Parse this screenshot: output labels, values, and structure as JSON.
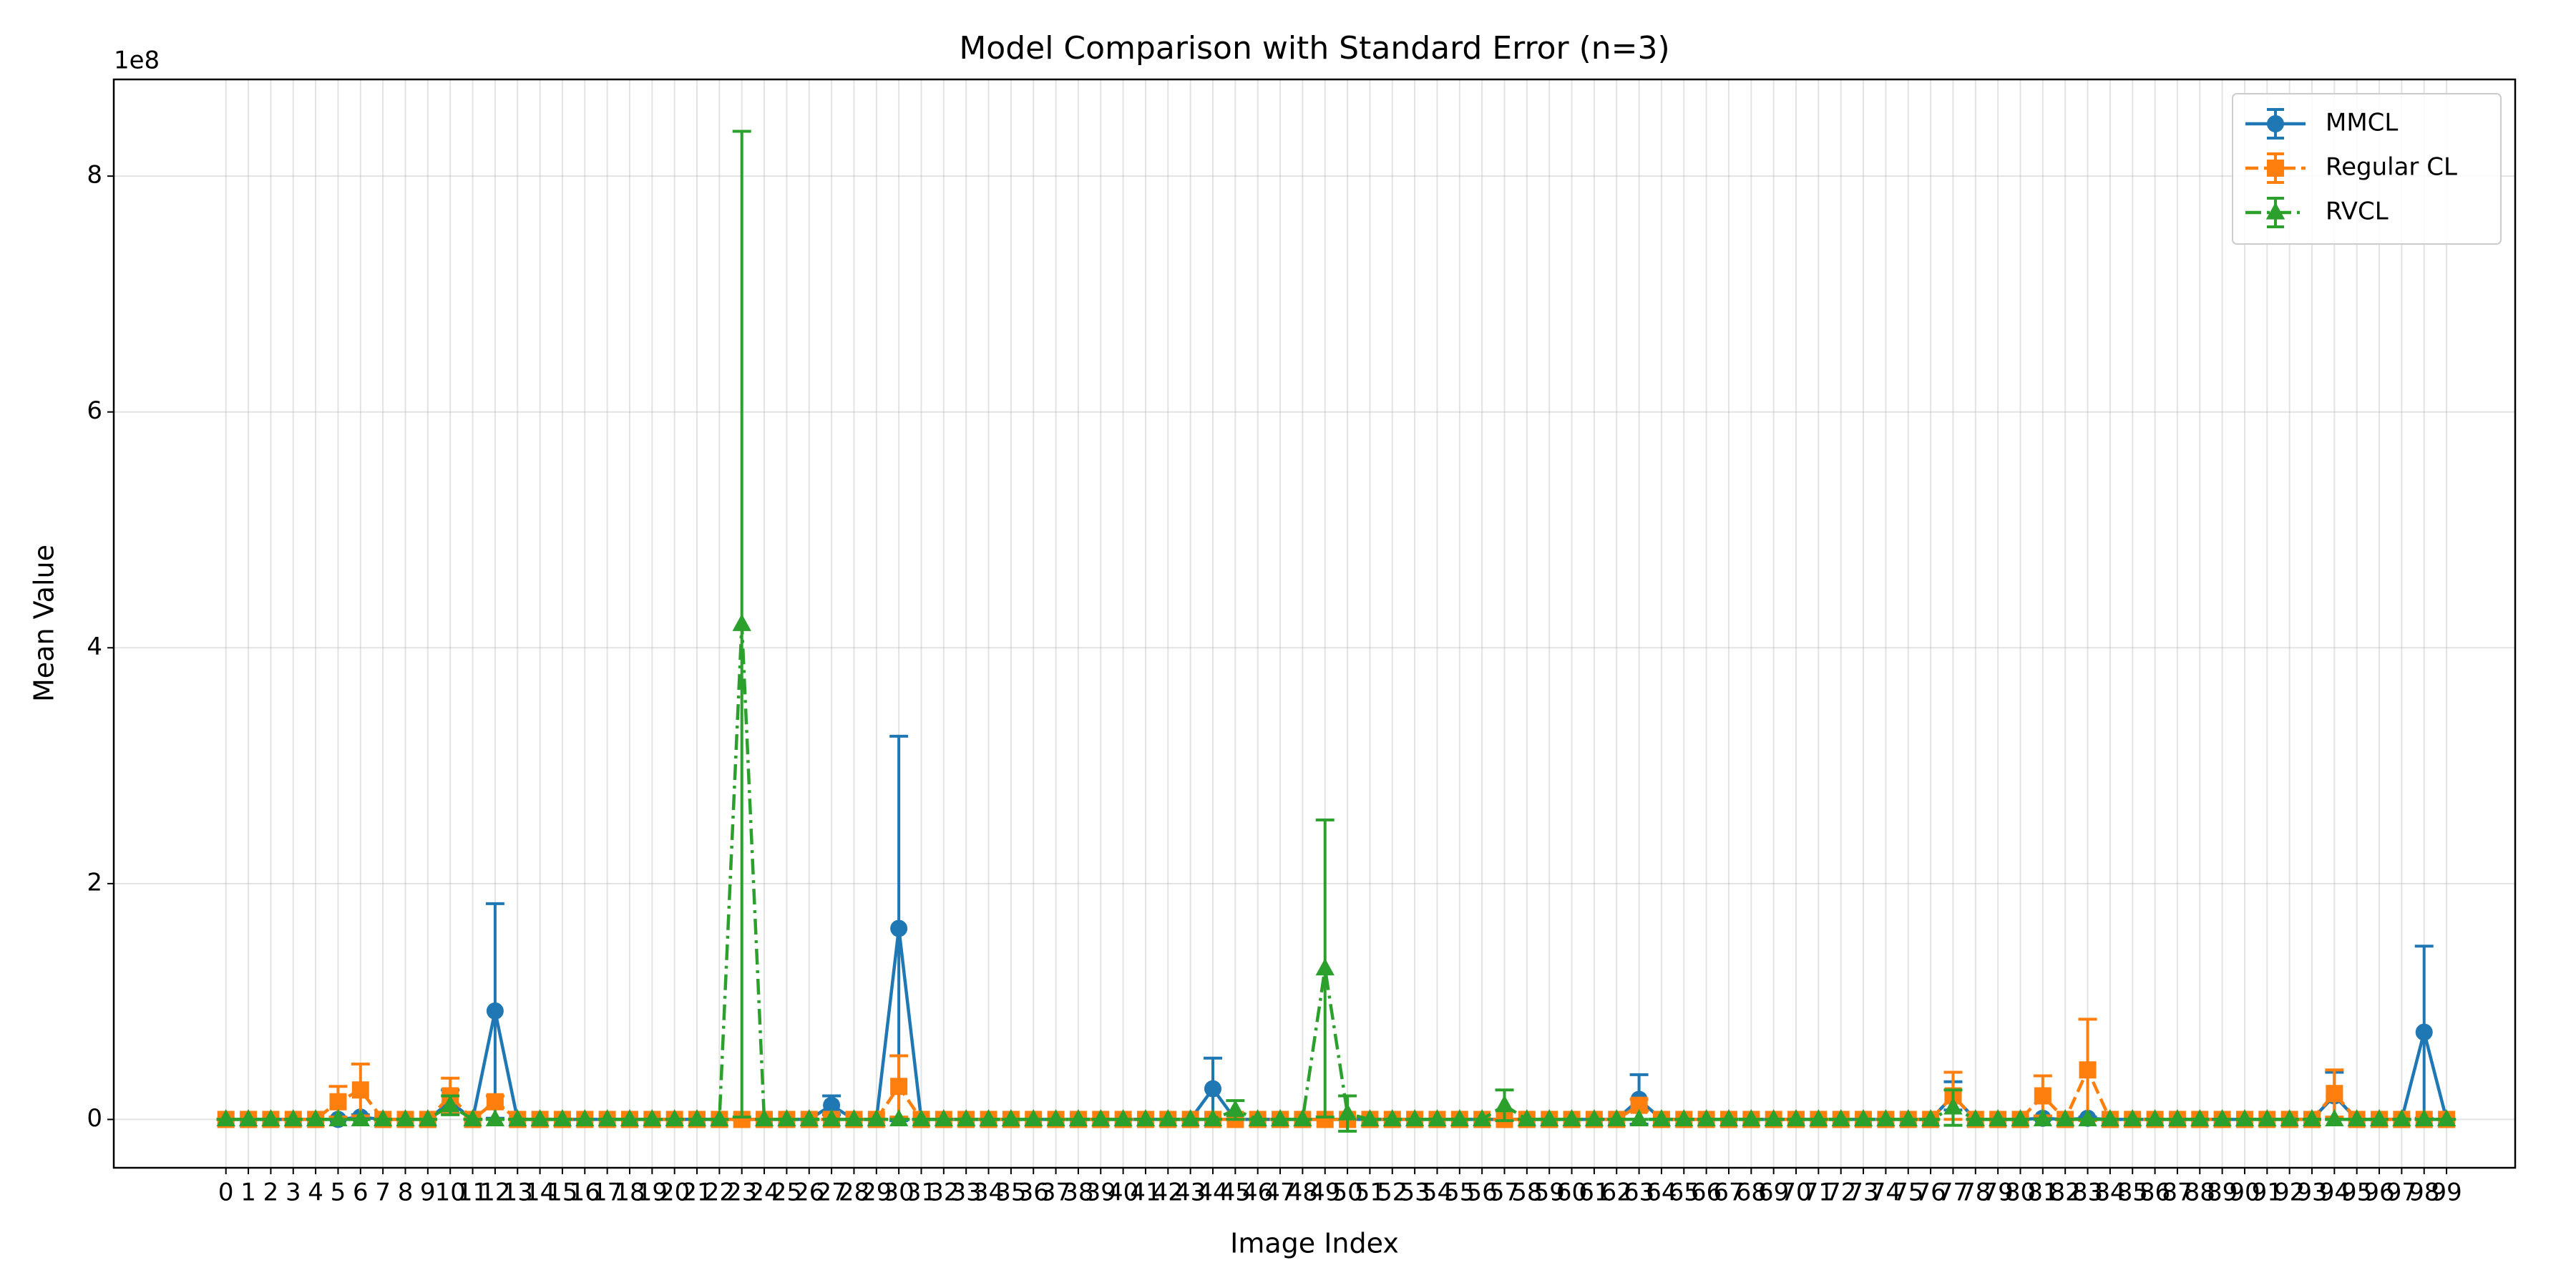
{
  "chart_data": {
    "type": "errorbar-line",
    "title": "Model Comparison with Standard Error (n=3)",
    "x_label": "Image Index",
    "y_label": "Mean Value",
    "y_offset_label": "1e8",
    "categories": [
      "0",
      "1",
      "2",
      "3",
      "4",
      "5",
      "6",
      "7",
      "8",
      "9",
      "10",
      "11",
      "12",
      "13",
      "14",
      "15",
      "16",
      "17",
      "18",
      "19",
      "20",
      "21",
      "22",
      "23",
      "24",
      "25",
      "26",
      "27",
      "28",
      "29",
      "30",
      "31",
      "32",
      "33",
      "34",
      "35",
      "36",
      "37",
      "38",
      "39",
      "40",
      "41",
      "42",
      "43",
      "44",
      "45",
      "46",
      "47",
      "48",
      "49",
      "50",
      "51",
      "52",
      "53",
      "54",
      "55",
      "56",
      "57",
      "58",
      "59",
      "60",
      "61",
      "62",
      "63",
      "64",
      "65",
      "66",
      "67",
      "68",
      "69",
      "70",
      "71",
      "72",
      "73",
      "74",
      "75",
      "76",
      "77",
      "78",
      "79",
      "80",
      "81",
      "82",
      "83",
      "84",
      "85",
      "86",
      "87",
      "88",
      "89",
      "90",
      "91",
      "92",
      "93",
      "94",
      "95",
      "96",
      "97",
      "98",
      "99"
    ],
    "xlim": [
      -5,
      102.06
    ],
    "ylim": [
      -0.41,
      8.82
    ],
    "yticks": [
      0,
      2,
      4,
      6,
      8
    ],
    "grid": true,
    "legend": "upper right",
    "series": [
      {
        "name": "MMCL",
        "color": "#1f77b4",
        "dash": "solid",
        "marker": "circle",
        "values": [
          0,
          0,
          0,
          0,
          0,
          0,
          0.02,
          0,
          0,
          0,
          0.15,
          0,
          0.92,
          0,
          0,
          0,
          0,
          0,
          0,
          0,
          0,
          0,
          0,
          0,
          0,
          0,
          0,
          0.12,
          0,
          0,
          1.62,
          0,
          0,
          0,
          0,
          0,
          0,
          0,
          0,
          0,
          0,
          0,
          0,
          0,
          0.26,
          0,
          0,
          0,
          0,
          0,
          0,
          0,
          0,
          0,
          0,
          0,
          0,
          0,
          0,
          0,
          0,
          0,
          0,
          0.17,
          0,
          0,
          0,
          0,
          0,
          0,
          0,
          0,
          0,
          0,
          0,
          0,
          0,
          0.2,
          0,
          0,
          0,
          0.01,
          0,
          0.01,
          0,
          0,
          0,
          0,
          0,
          0,
          0,
          0,
          0,
          0,
          0.2,
          0,
          0,
          0,
          0.74,
          0
        ],
        "errors": [
          0,
          0,
          0,
          0,
          0,
          0,
          0.02,
          0,
          0,
          0,
          0.1,
          0,
          0.91,
          0,
          0,
          0,
          0,
          0,
          0,
          0,
          0,
          0,
          0,
          0,
          0,
          0,
          0,
          0.08,
          0,
          0,
          1.63,
          0,
          0,
          0,
          0,
          0,
          0,
          0,
          0,
          0,
          0,
          0,
          0,
          0,
          0.26,
          0,
          0,
          0,
          0,
          0,
          0,
          0,
          0,
          0,
          0,
          0,
          0,
          0,
          0,
          0,
          0,
          0,
          0,
          0.21,
          0,
          0,
          0,
          0,
          0,
          0,
          0,
          0,
          0,
          0,
          0,
          0,
          0,
          0.12,
          0,
          0,
          0,
          0.01,
          0,
          0.01,
          0,
          0,
          0,
          0,
          0,
          0,
          0,
          0,
          0,
          0,
          0.2,
          0,
          0,
          0,
          0.73,
          0
        ]
      },
      {
        "name": "Regular CL",
        "color": "#ff7f0e",
        "dash": "dashed",
        "marker": "square",
        "values": [
          0,
          0,
          0,
          0,
          0,
          0.15,
          0.25,
          0,
          0,
          0,
          0.2,
          0,
          0.15,
          0,
          0,
          0,
          0,
          0,
          0,
          0,
          0,
          0,
          0,
          0,
          0,
          0,
          0,
          0,
          0,
          0,
          0.28,
          0,
          0,
          0,
          0,
          0,
          0,
          0,
          0,
          0,
          0,
          0,
          0,
          0,
          0,
          0,
          0,
          0,
          0,
          0,
          0,
          0,
          0,
          0,
          0,
          0,
          0,
          0,
          0,
          0,
          0,
          0,
          0,
          0.12,
          0,
          0,
          0,
          0,
          0,
          0,
          0,
          0,
          0,
          0,
          0,
          0,
          0,
          0.2,
          0,
          0,
          0,
          0.2,
          0,
          0.42,
          0,
          0,
          0,
          0,
          0,
          0,
          0,
          0,
          0,
          0,
          0.22,
          0,
          0,
          0,
          0,
          0
        ],
        "errors": [
          0,
          0,
          0,
          0,
          0,
          0.13,
          0.22,
          0,
          0,
          0,
          0.15,
          0,
          0.05,
          0,
          0,
          0,
          0,
          0,
          0,
          0,
          0,
          0,
          0,
          0,
          0,
          0,
          0,
          0,
          0,
          0,
          0.26,
          0,
          0,
          0,
          0,
          0,
          0,
          0,
          0,
          0,
          0,
          0,
          0,
          0,
          0,
          0,
          0,
          0,
          0,
          0,
          0,
          0,
          0,
          0,
          0,
          0,
          0,
          0,
          0,
          0,
          0,
          0,
          0,
          0.05,
          0,
          0,
          0,
          0,
          0,
          0,
          0,
          0,
          0,
          0,
          0,
          0,
          0,
          0.2,
          0,
          0,
          0,
          0.17,
          0,
          0.43,
          0,
          0,
          0,
          0,
          0,
          0,
          0,
          0,
          0,
          0,
          0.2,
          0,
          0,
          0,
          0,
          0
        ]
      },
      {
        "name": "RVCL",
        "color": "#2ca02c",
        "dash": "dashdot",
        "marker": "triangle",
        "values": [
          0,
          0,
          0,
          0,
          0,
          0,
          0,
          0,
          0,
          0,
          0.12,
          0,
          0,
          0,
          0,
          0,
          0,
          0,
          0,
          0,
          0,
          0,
          0,
          4.2,
          0,
          0,
          0,
          0,
          0,
          0,
          0,
          0,
          0,
          0,
          0,
          0,
          0,
          0,
          0,
          0,
          0,
          0,
          0,
          0,
          0,
          0.08,
          0,
          0,
          0,
          1.28,
          0.05,
          0,
          0,
          0,
          0,
          0,
          0,
          0.12,
          0,
          0,
          0,
          0,
          0,
          0,
          0,
          0,
          0,
          0,
          0,
          0,
          0,
          0,
          0,
          0,
          0,
          0,
          0,
          0.1,
          0,
          0,
          0,
          0,
          0,
          0,
          0,
          0,
          0,
          0,
          0,
          0,
          0,
          0,
          0,
          0,
          0,
          0,
          0,
          0,
          0,
          0
        ],
        "errors": [
          0,
          0,
          0,
          0,
          0,
          0,
          0,
          0,
          0,
          0,
          0.08,
          0,
          0,
          0,
          0,
          0,
          0,
          0,
          0,
          0,
          0,
          0,
          0,
          4.18,
          0,
          0,
          0,
          0,
          0,
          0,
          0,
          0,
          0,
          0,
          0,
          0,
          0,
          0,
          0,
          0,
          0,
          0,
          0,
          0,
          0,
          0.08,
          0,
          0,
          0,
          1.26,
          0.15,
          0,
          0,
          0,
          0,
          0,
          0,
          0.13,
          0,
          0,
          0,
          0,
          0,
          0,
          0,
          0,
          0,
          0,
          0,
          0,
          0,
          0,
          0,
          0,
          0,
          0,
          0,
          0.15,
          0,
          0,
          0,
          0,
          0,
          0,
          0,
          0,
          0,
          0,
          0,
          0,
          0,
          0,
          0,
          0,
          0,
          0,
          0,
          0,
          0,
          0
        ]
      }
    ]
  }
}
